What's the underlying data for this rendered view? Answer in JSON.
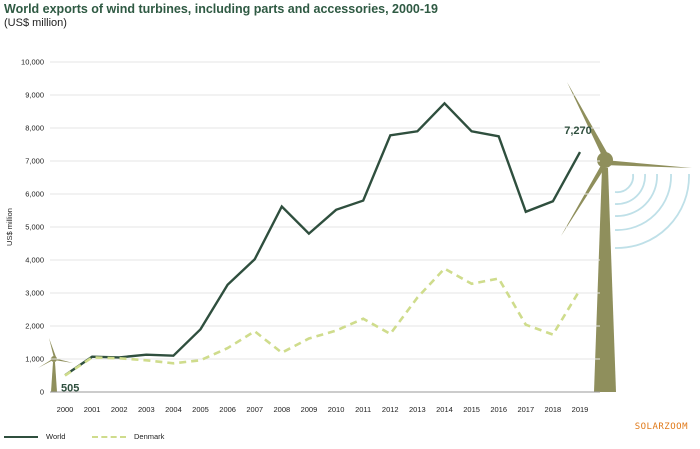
{
  "chart_data": {
    "type": "line",
    "title": "World exports of wind turbines, including parts and accessories, 2000-19",
    "subtitle": "(US$ million)",
    "ylabel": "US$ million",
    "xlabel": "",
    "categories": [
      "2000",
      "2001",
      "2002",
      "2003",
      "2004",
      "2005",
      "2006",
      "2007",
      "2008",
      "2009",
      "2010",
      "2011",
      "2012",
      "2013",
      "2014",
      "2015",
      "2016",
      "2017",
      "2018",
      "2019"
    ],
    "y_ticks": [
      "0",
      "1,000",
      "2,000",
      "3,000",
      "4,000",
      "5,000",
      "6,000",
      "7,000",
      "8,000",
      "9,000",
      "10,000"
    ],
    "ylim": [
      0,
      10000
    ],
    "grid": true,
    "series": [
      {
        "name": "World",
        "style": "solid",
        "color": "#2f4f3e",
        "values": [
          505,
          1070,
          1050,
          1130,
          1100,
          1900,
          3250,
          4020,
          5620,
          4800,
          5520,
          5800,
          7780,
          7900,
          8750,
          7900,
          7750,
          5460,
          5780,
          7270
        ]
      },
      {
        "name": "Denmark",
        "style": "dashed",
        "color": "#cfdc8c",
        "values": [
          500,
          1050,
          1020,
          960,
          870,
          960,
          1330,
          1840,
          1190,
          1620,
          1860,
          2220,
          1760,
          2860,
          3740,
          3280,
          3440,
          2040,
          1740,
          3100
        ]
      }
    ],
    "annotations": [
      {
        "series": "World",
        "category": "2000",
        "text": "505"
      },
      {
        "series": "World",
        "category": "2019",
        "text": "7,270"
      }
    ],
    "legend_position": "bottom-left"
  },
  "colors": {
    "turbine": "#8f8f5c",
    "arcs": "#bfe0e8",
    "grid": "#e4e4e4",
    "axis": "#999999"
  },
  "icons": [
    "wind-turbine-large-icon",
    "wind-turbine-small-icon",
    "wind-arcs-icon"
  ],
  "watermark": "SOLARZOOM"
}
